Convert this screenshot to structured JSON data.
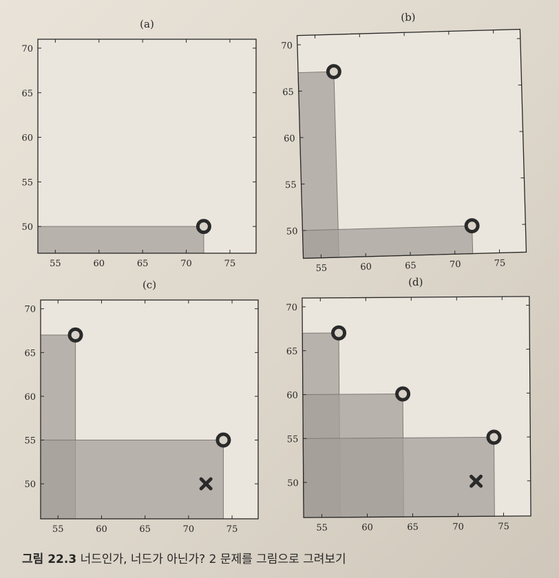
{
  "figure": {
    "caption_label": "그림 22.3",
    "caption_text": "너드인가, 너드가 아닌가? 2 문제를 그림으로 그려보기"
  },
  "colors": {
    "region_fill": "#a39e98",
    "region_edge": "#7d7873",
    "axis": "#262626",
    "marker": "#2a2a2a",
    "marker_inner": "#d8d2c8",
    "plot_bg": "#ebe6dd"
  },
  "chart_data": [
    {
      "type": "scatter",
      "panel_label": "(a)",
      "xlim": [
        53,
        78
      ],
      "ylim": [
        47,
        71
      ],
      "xticks": [
        55,
        60,
        65,
        70,
        75
      ],
      "yticks": [
        50,
        55,
        60,
        65,
        70
      ],
      "xticklabels": [
        "55",
        "60",
        "65",
        "70",
        "75"
      ],
      "yticklabels": [
        "50",
        "55",
        "60",
        "65",
        "70"
      ],
      "rectangles": [
        {
          "x": [
            53,
            72
          ],
          "y": [
            47,
            50
          ]
        }
      ],
      "points": [
        {
          "x": 72,
          "y": 50,
          "marker": "circle"
        }
      ]
    },
    {
      "type": "scatter",
      "panel_label": "(b)",
      "xlim": [
        53,
        78
      ],
      "ylim": [
        47,
        71
      ],
      "xticks": [
        55,
        60,
        65,
        70,
        75
      ],
      "yticks": [
        50,
        55,
        60,
        65,
        70
      ],
      "xticklabels": [
        "55",
        "60",
        "65",
        "70",
        "75"
      ],
      "yticklabels": [
        "50",
        "55",
        "60",
        "65",
        "70"
      ],
      "rectangles": [
        {
          "x": [
            53,
            57
          ],
          "y": [
            47,
            67
          ]
        },
        {
          "x": [
            53,
            72
          ],
          "y": [
            47,
            50
          ]
        }
      ],
      "points": [
        {
          "x": 57,
          "y": 67,
          "marker": "circle"
        },
        {
          "x": 72,
          "y": 50,
          "marker": "circle"
        }
      ]
    },
    {
      "type": "scatter",
      "panel_label": "(c)",
      "xlim": [
        53,
        78
      ],
      "ylim": [
        46,
        71
      ],
      "xticks": [
        55,
        60,
        65,
        70,
        75
      ],
      "yticks": [
        50,
        55,
        60,
        65,
        70
      ],
      "xticklabels": [
        "55",
        "60",
        "65",
        "70",
        "75"
      ],
      "yticklabels": [
        "50",
        "55",
        "60",
        "65",
        "70"
      ],
      "rectangles": [
        {
          "x": [
            53,
            57
          ],
          "y": [
            46,
            67
          ]
        },
        {
          "x": [
            53,
            74
          ],
          "y": [
            46,
            55
          ]
        }
      ],
      "points": [
        {
          "x": 57,
          "y": 67,
          "marker": "circle"
        },
        {
          "x": 74,
          "y": 55,
          "marker": "circle"
        },
        {
          "x": 72,
          "y": 50,
          "marker": "x"
        }
      ]
    },
    {
      "type": "scatter",
      "panel_label": "(d)",
      "xlim": [
        53,
        78
      ],
      "ylim": [
        46,
        71
      ],
      "xticks": [
        55,
        60,
        65,
        70,
        75
      ],
      "yticks": [
        50,
        55,
        60,
        65,
        70
      ],
      "xticklabels": [
        "55",
        "60",
        "65",
        "70",
        "75"
      ],
      "yticklabels": [
        "50",
        "55",
        "60",
        "65",
        "70"
      ],
      "rectangles": [
        {
          "x": [
            53,
            57
          ],
          "y": [
            46,
            67
          ]
        },
        {
          "x": [
            53,
            64
          ],
          "y": [
            46,
            60
          ]
        },
        {
          "x": [
            53,
            74
          ],
          "y": [
            46,
            55
          ]
        }
      ],
      "points": [
        {
          "x": 57,
          "y": 67,
          "marker": "circle"
        },
        {
          "x": 64,
          "y": 60,
          "marker": "circle"
        },
        {
          "x": 74,
          "y": 55,
          "marker": "circle"
        },
        {
          "x": 72,
          "y": 50,
          "marker": "x"
        }
      ]
    }
  ]
}
